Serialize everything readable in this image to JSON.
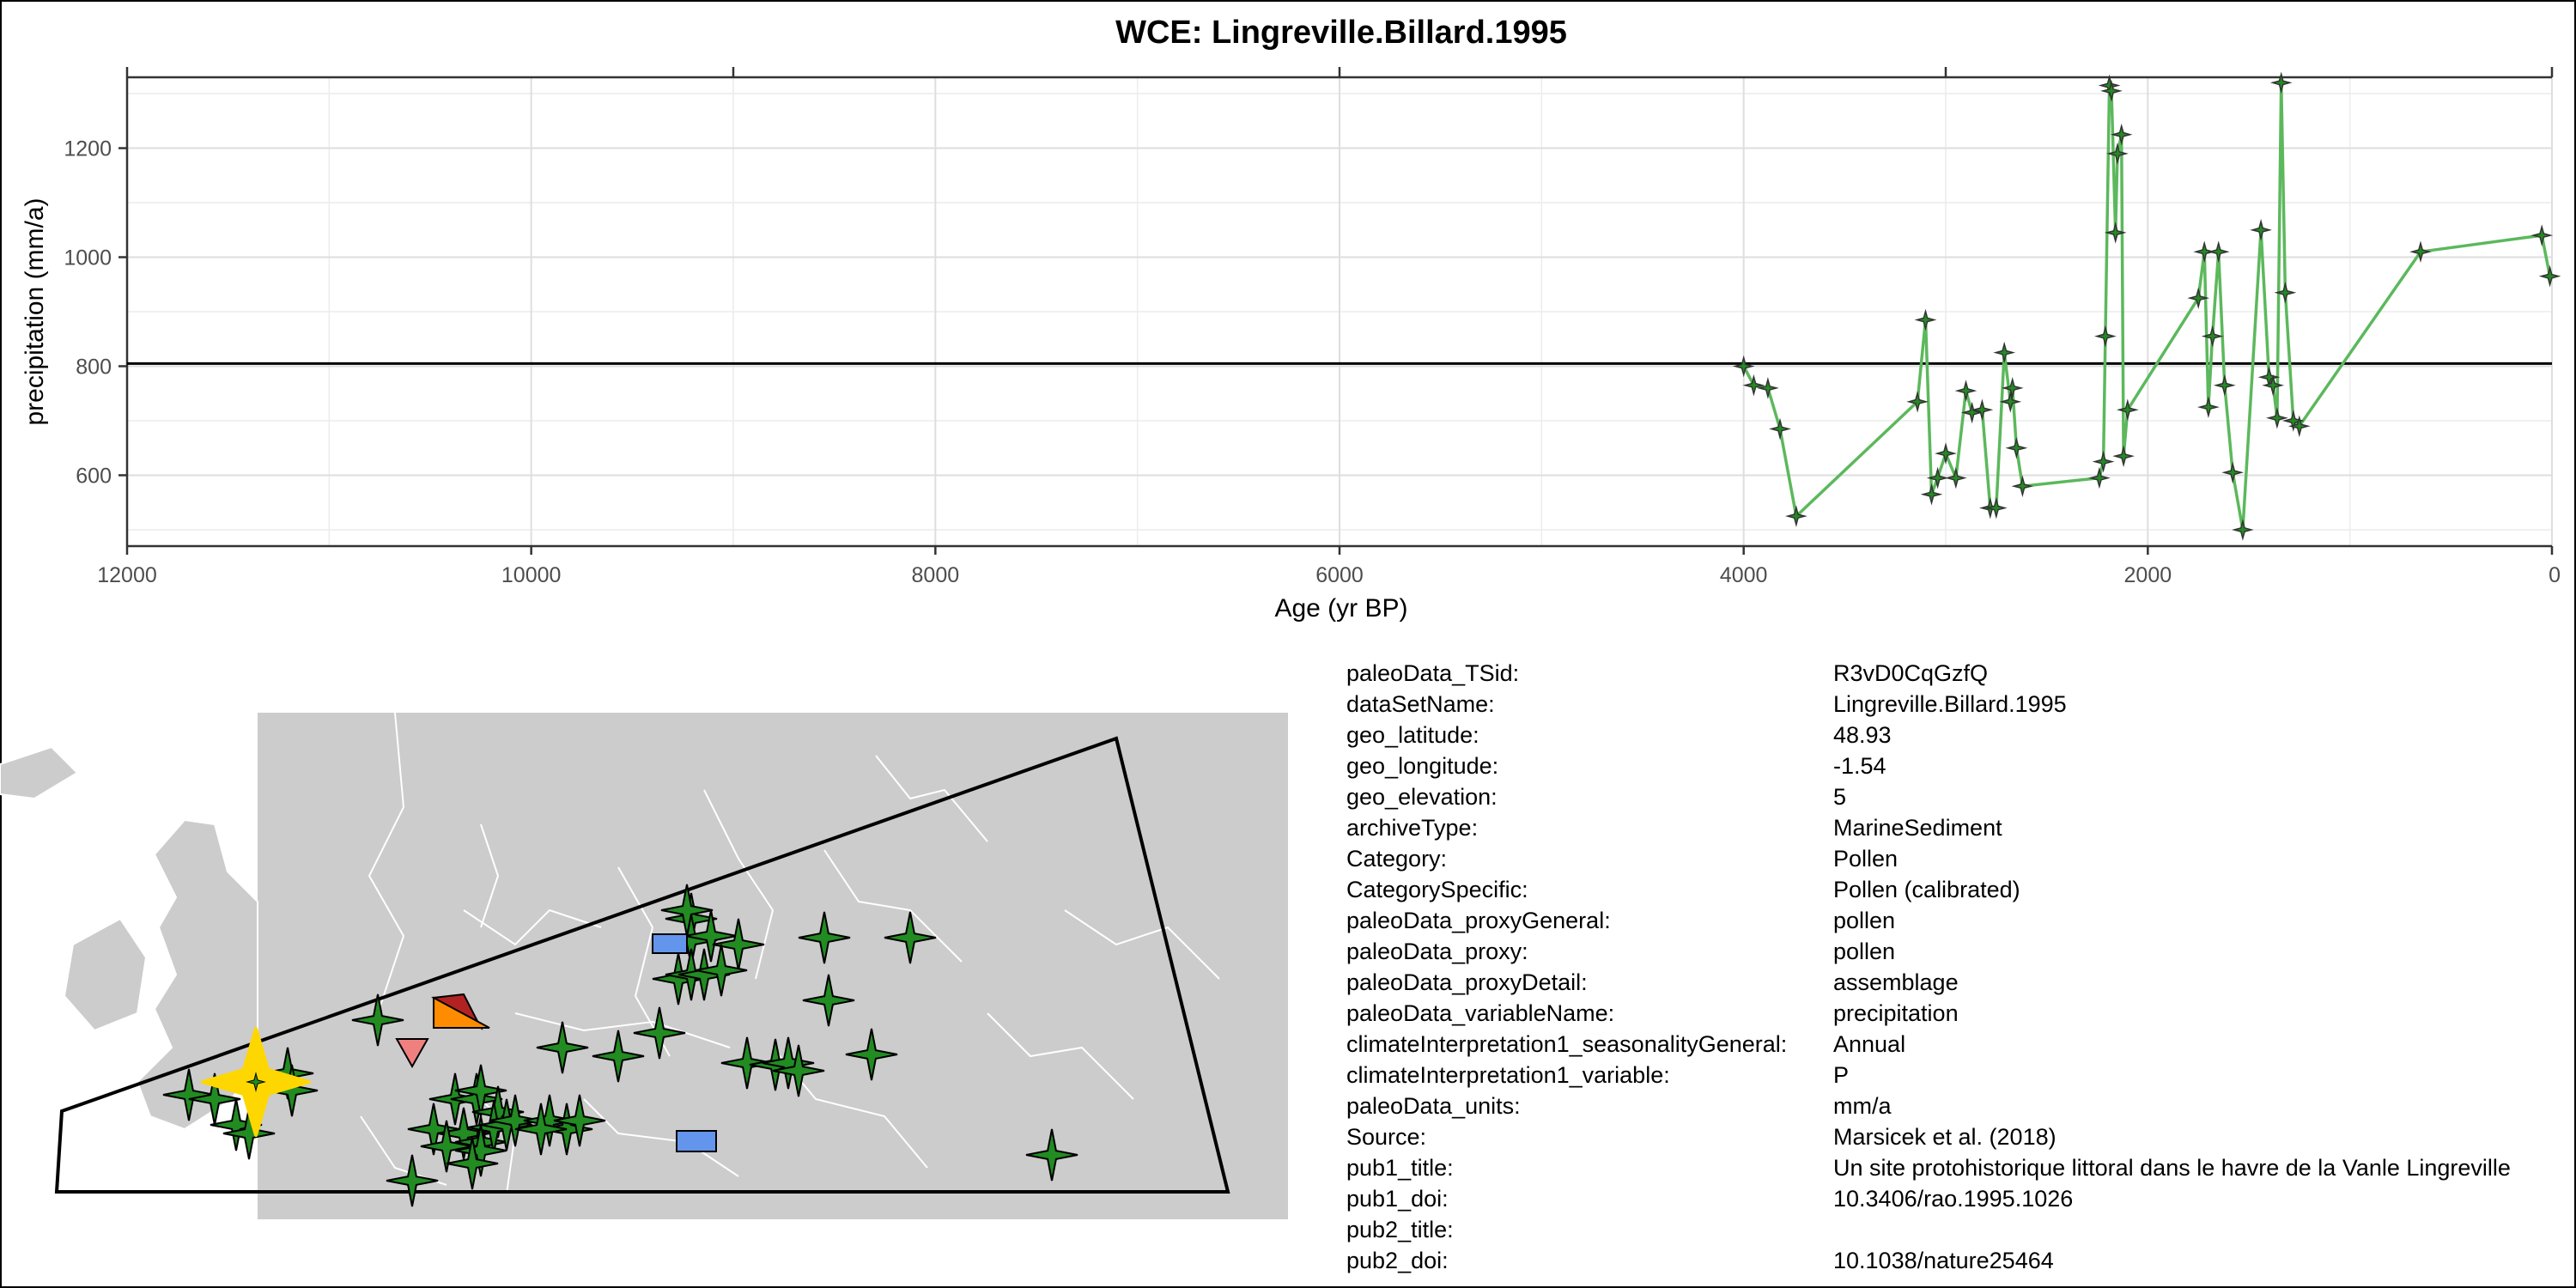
{
  "chart_data": {
    "type": "line",
    "title": "WCE: Lingreville.Billard.1995",
    "xlabel": "Age (yr BP)",
    "ylabel": "precipitation (mm/a)",
    "xlim": [
      12000,
      0
    ],
    "ylim": [
      470,
      1330
    ],
    "x_reversed": true,
    "xticks": [
      12000,
      10000,
      8000,
      6000,
      4000,
      2000,
      0
    ],
    "yticks": [
      600,
      800,
      1000,
      1200
    ],
    "reference_line": 805,
    "grid": true,
    "legend": "none",
    "series": [
      {
        "color": "#5cb85c",
        "marker": "four-point-star",
        "x": [
          4000,
          3950,
          3880,
          3820,
          3740,
          3140,
          3100,
          3070,
          3040,
          3000,
          2950,
          2900,
          2870,
          2820,
          2780,
          2750,
          2710,
          2680,
          2670,
          2650,
          2620,
          2240,
          2220,
          2210,
          2190,
          2180,
          2160,
          2150,
          2130,
          2120,
          2100,
          1750,
          1720,
          1700,
          1680,
          1650,
          1620,
          1580,
          1530,
          1440,
          1400,
          1380,
          1360,
          1340,
          1320,
          1280,
          1250,
          650,
          50,
          10
        ],
        "y": [
          800,
          765,
          760,
          685,
          525,
          735,
          885,
          565,
          595,
          640,
          595,
          755,
          715,
          720,
          540,
          540,
          825,
          735,
          760,
          650,
          580,
          595,
          625,
          855,
          1315,
          1305,
          1045,
          1190,
          1225,
          635,
          720,
          925,
          1010,
          725,
          855,
          1010,
          765,
          605,
          500,
          1050,
          780,
          765,
          705,
          1320,
          935,
          700,
          690,
          1010,
          1040,
          965
        ]
      }
    ]
  },
  "colors": {
    "series_line": "#5cb85c",
    "marker_fill": "#228b22",
    "map_land": "#cccccc",
    "map_border": "#ffffff",
    "highlight_star": "#ffd700",
    "orange_triangle": "#ff8c00",
    "pink_triangle": "#f08080",
    "blue_rect": "#6495ed"
  },
  "metadata": [
    {
      "key": "paleoData_TSid:",
      "value": "R3vD0CqGzfQ"
    },
    {
      "key": "dataSetName:",
      "value": "Lingreville.Billard.1995"
    },
    {
      "key": "geo_latitude:",
      "value": "48.93"
    },
    {
      "key": "geo_longitude:",
      "value": "-1.54"
    },
    {
      "key": "geo_elevation:",
      "value": "5"
    },
    {
      "key": "archiveType:",
      "value": "MarineSediment"
    },
    {
      "key": "Category:",
      "value": "Pollen"
    },
    {
      "key": "CategorySpecific:",
      "value": "Pollen (calibrated)"
    },
    {
      "key": "paleoData_proxyGeneral:",
      "value": "pollen"
    },
    {
      "key": "paleoData_proxy:",
      "value": "pollen"
    },
    {
      "key": "paleoData_proxyDetail:",
      "value": "assemblage"
    },
    {
      "key": "paleoData_variableName:",
      "value": "precipitation"
    },
    {
      "key": "climateInterpretation1_seasonalityGeneral:",
      "value": "Annual"
    },
    {
      "key": "climateInterpretation1_variable:",
      "value": "P"
    },
    {
      "key": "paleoData_units:",
      "value": "mm/a"
    },
    {
      "key": "Source:",
      "value": "Marsicek et al. (2018)"
    },
    {
      "key": "pub1_title:",
      "value": "Un site protohistorique littoral dans le havre de la Vanle    Lingreville"
    },
    {
      "key": "pub1_doi:",
      "value": "10.3406/rao.1995.1026"
    },
    {
      "key": "pub2_title:",
      "value": ""
    },
    {
      "key": "pub2_doi:",
      "value": "10.1038/nature25464"
    }
  ]
}
